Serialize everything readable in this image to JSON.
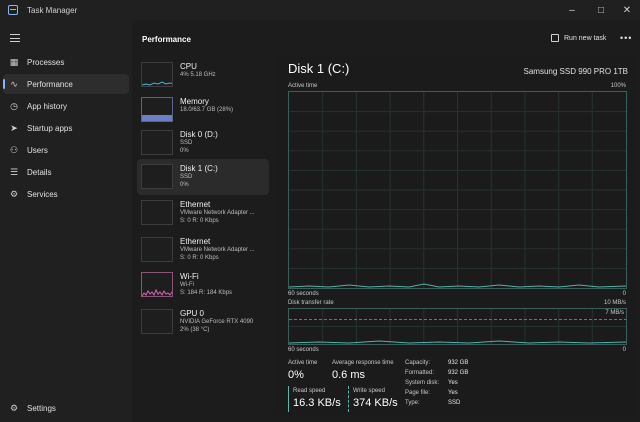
{
  "window": {
    "title": "Task Manager"
  },
  "sidebar": {
    "items": [
      {
        "label": "Processes",
        "icon": "processes-icon"
      },
      {
        "label": "Performance",
        "icon": "performance-icon",
        "active": true
      },
      {
        "label": "App history",
        "icon": "app-history-icon"
      },
      {
        "label": "Startup apps",
        "icon": "startup-apps-icon"
      },
      {
        "label": "Users",
        "icon": "users-icon"
      },
      {
        "label": "Details",
        "icon": "details-icon"
      },
      {
        "label": "Services",
        "icon": "services-icon"
      }
    ],
    "settings_label": "Settings"
  },
  "header": {
    "title": "Performance",
    "run_new_task": "Run new task",
    "more": "•••"
  },
  "devices": [
    {
      "name": "CPU",
      "lines": [
        "4%  5.18 GHz"
      ]
    },
    {
      "name": "Memory",
      "lines": [
        "18.0/63.7 GB (28%)"
      ]
    },
    {
      "name": "Disk 0 (D:)",
      "lines": [
        "SSD",
        "0%"
      ]
    },
    {
      "name": "Disk 1 (C:)",
      "lines": [
        "SSD",
        "0%"
      ],
      "active": true
    },
    {
      "name": "Ethernet",
      "lines": [
        "VMware Network Adapter ...",
        "S: 0 R: 0 Kbps"
      ]
    },
    {
      "name": "Ethernet",
      "lines": [
        "VMware Network Adapter ...",
        "S: 0 R: 0 Kbps"
      ]
    },
    {
      "name": "Wi-Fi",
      "lines": [
        "Wi-Fi",
        "S: 184 R: 184 Kbps"
      ]
    },
    {
      "name": "GPU 0",
      "lines": [
        "NVIDIA GeForce RTX 4090",
        "2% (38 °C)"
      ]
    }
  ],
  "detail": {
    "title": "Disk 1 (C:)",
    "model": "Samsung SSD 990 PRO 1TB",
    "active_time_label": "Active time",
    "active_time_max": "100%",
    "graph1_xlabel": "60 seconds",
    "graph1_min": "0",
    "transfer_label": "Disk transfer rate",
    "transfer_max": "10 MB/s",
    "transfer_marker": "7 MB/s",
    "graph2_xlabel": "60 seconds",
    "graph2_min": "0",
    "stats": {
      "active_time_label": "Active time",
      "active_time_value": "0%",
      "avg_response_label": "Average response time",
      "avg_response_value": "0.6 ms",
      "read_label": "Read speed",
      "read_value": "16.3 KB/s",
      "write_label": "Write speed",
      "write_value": "374 KB/s"
    },
    "properties": [
      {
        "k": "Capacity:",
        "v": "932 GB"
      },
      {
        "k": "Formatted:",
        "v": "932 GB"
      },
      {
        "k": "System disk:",
        "v": "Yes"
      },
      {
        "k": "Page file:",
        "v": "Yes"
      },
      {
        "k": "Type:",
        "v": "SSD"
      }
    ]
  }
}
